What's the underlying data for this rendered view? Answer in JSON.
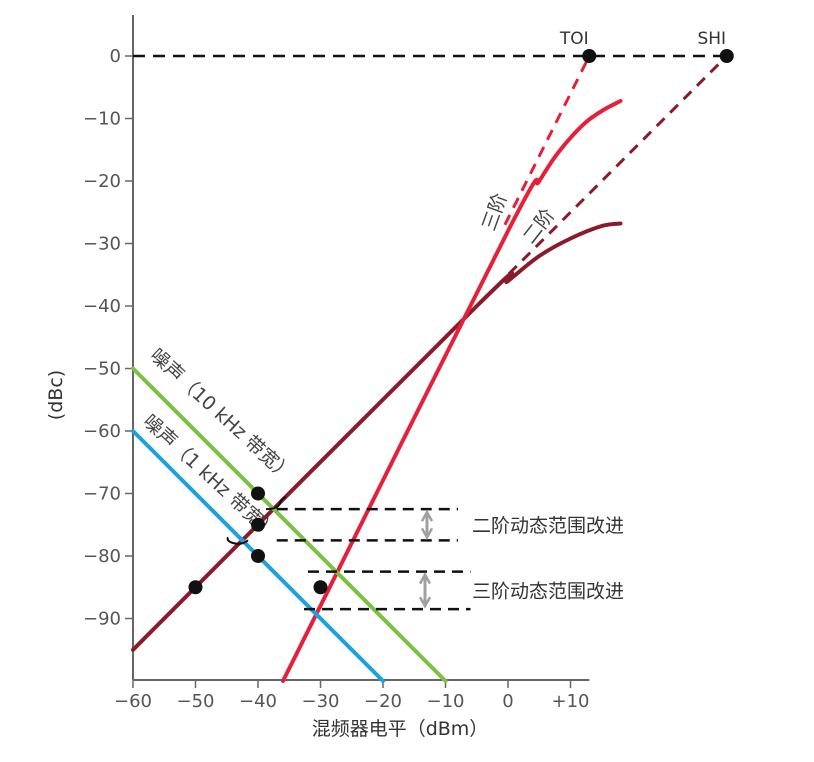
{
  "chart_data": {
    "type": "line",
    "xlabel": "混频器电平（dBm）",
    "ylabel": "(dBc)",
    "xlim": [
      -60,
      13
    ],
    "ylim": [
      -100,
      5
    ],
    "x_ticks": [
      -60,
      -50,
      -40,
      -30,
      -20,
      -10,
      0,
      10
    ],
    "x_tick_labels": [
      "−60",
      "−50",
      "−40",
      "−30",
      "−20",
      "−10",
      "0",
      "+10"
    ],
    "y_ticks": [
      0,
      -10,
      -20,
      -30,
      -40,
      -50,
      -60,
      -70,
      -80,
      -90
    ],
    "y_tick_labels": [
      "0",
      "−10",
      "−20",
      "−30",
      "−40",
      "−50",
      "−60",
      "−70",
      "−80",
      "−90"
    ],
    "colors": {
      "second_order": "#8b1a2b",
      "third_order": "#e5203a",
      "noise_10khz": "#7cc242",
      "noise_1khz": "#1aa3de",
      "dashed": "#111111",
      "arrow": "#a0a0a0",
      "point": "#111111"
    },
    "series": [
      {
        "key": "second",
        "name": "二阶",
        "color": "#8b1a2b",
        "solid": [
          [
            -60,
            -95
          ],
          [
            -5,
            -40
          ],
          [
            0,
            -36
          ],
          [
            5,
            -32
          ],
          [
            10,
            -29.2
          ],
          [
            15,
            -27.2
          ],
          [
            18,
            -26.8
          ]
        ],
        "dashed": [
          [
            -2,
            -37
          ],
          [
            35,
            0
          ]
        ]
      },
      {
        "key": "third",
        "name": "三阶",
        "color": "#e5203a",
        "solid": [
          [
            -36,
            -100
          ],
          [
            0,
            -28
          ],
          [
            5,
            -20
          ],
          [
            8,
            -15.5
          ],
          [
            12,
            -11
          ],
          [
            15,
            -8.8
          ],
          [
            18,
            -7.2
          ]
        ],
        "dashed": [
          [
            -0.5,
            -27
          ],
          [
            13,
            0
          ]
        ]
      },
      {
        "key": "noise10",
        "name": "噪声（10 kHz 带宽）",
        "color": "#7cc242",
        "solid": [
          [
            -60,
            -50
          ],
          [
            -10,
            -100
          ]
        ]
      },
      {
        "key": "noise1",
        "name": "噪声（1 kHz 带宽）",
        "color": "#1aa3de",
        "solid": [
          [
            -60,
            -60
          ],
          [
            -20,
            -100
          ]
        ]
      }
    ],
    "reference_line": {
      "y": 0,
      "x": [
        -60,
        35
      ]
    },
    "points": [
      {
        "x": 13,
        "y": 0,
        "label": "TOI"
      },
      {
        "x": 35,
        "y": 0,
        "label": "SHI"
      },
      {
        "x": -50,
        "y": -85
      },
      {
        "x": -40,
        "y": -70
      },
      {
        "x": -40,
        "y": -75
      },
      {
        "x": -40,
        "y": -80
      },
      {
        "x": -30,
        "y": -85
      }
    ],
    "improvements": [
      {
        "label": "二阶动态范围改进",
        "y_top": -72.5,
        "y_bottom": -77.5,
        "x_start": -37,
        "x_end": -8
      },
      {
        "label": "三阶动态范围改进",
        "y_top": -82.5,
        "y_bottom": -88.5,
        "x_start": -32,
        "x_end": -6
      }
    ],
    "curve_labels": {
      "third": "三阶",
      "second": "二阶",
      "noise10": "噪声（10 kHz 带宽）",
      "noise1": "噪声（1 kHz 带宽）"
    }
  }
}
